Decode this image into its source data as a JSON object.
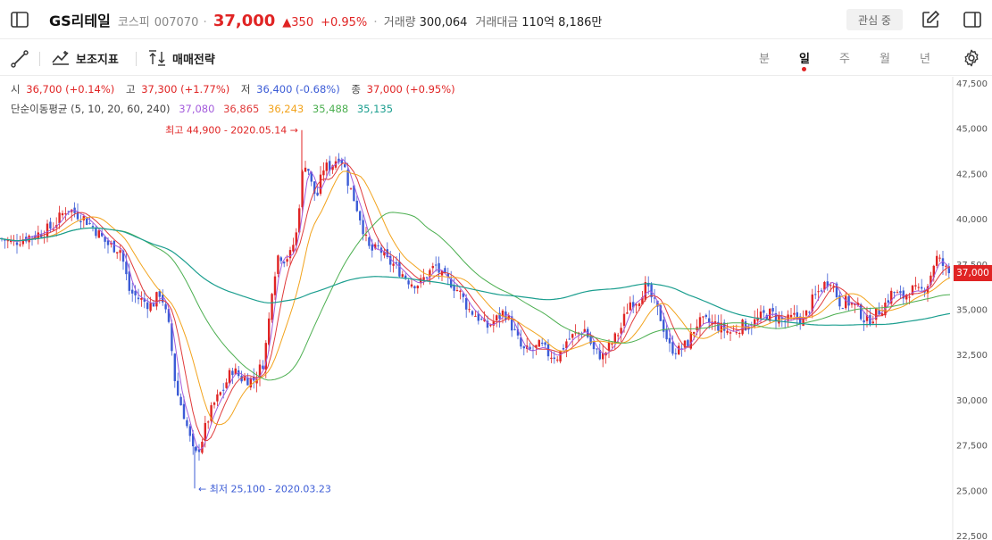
{
  "header": {
    "name": "GS리테일",
    "market": "코스피",
    "code": "007070",
    "separator": "·",
    "price": "37,000",
    "change": "▲350",
    "change_pct": "+0.95%",
    "volume_label": "거래량",
    "volume": "300,064",
    "amount_label": "거래대금",
    "amount": "110억 8,186만",
    "watch_label": "관심 중"
  },
  "toolbar": {
    "indicators_label": "보조지표",
    "strategy_label": "매매전략",
    "periods": [
      "분",
      "일",
      "주",
      "월",
      "년"
    ],
    "active_period": "일"
  },
  "ohlc": {
    "open_label": "시",
    "open": "36,700 (+0.14%)",
    "high_label": "고",
    "high": "37,300 (+1.77%)",
    "low_label": "저",
    "low": "36,400 (-0.68%)",
    "close_label": "종",
    "close": "37,000 (+0.95%)"
  },
  "moving_average": {
    "label": "단순이동평균 (5, 10, 20, 60, 240)",
    "values": [
      "37,080",
      "36,865",
      "36,243",
      "35,488",
      "35,135"
    ],
    "colors": [
      "#a45cdc",
      "#e03c3c",
      "#f2a31c",
      "#4caf50",
      "#1b9e8f"
    ]
  },
  "colors": {
    "up": "#e02424",
    "down": "#3c5cd6"
  },
  "chart_data": {
    "type": "candlestick",
    "y_ticks": [
      "47,500",
      "45,000",
      "42,500",
      "40,000",
      "37,500",
      "35,000",
      "32,500",
      "30,000",
      "27,500",
      "25,000",
      "22,500"
    ],
    "ylim": [
      22500,
      47500
    ],
    "current_price": 37000,
    "current_price_label": "37,000",
    "high_annotation": "최고 44,900 - 2020.05.14 →",
    "high_value": 44900,
    "low_annotation": "← 최저 25,100 - 2020.03.23",
    "low_value": 25100
  }
}
